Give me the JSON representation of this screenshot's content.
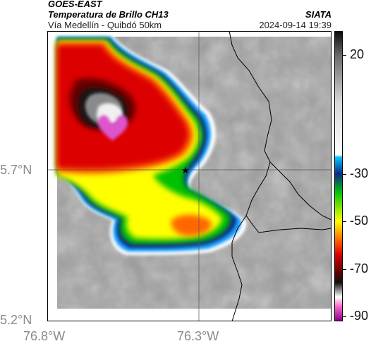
{
  "header": {
    "satellite": "GOES-EAST",
    "product": "Temperatura de Brillo CH13",
    "region": "Vía Medellín - Quibdó 50km",
    "agency": "SIATA",
    "datetime": "2024-09-14 19:39"
  },
  "axes": {
    "lat_labels": [
      "5.7°N",
      "5.2°N"
    ],
    "lon_labels": [
      "76.8°W",
      "76.3°W"
    ]
  },
  "colorbar": {
    "ticks": [
      "20",
      "-30",
      "-50",
      "-70",
      "-90"
    ],
    "stops": [
      {
        "value": 30,
        "color": "#0a0a0a"
      },
      {
        "value": 20,
        "color": "#6a6a6a"
      },
      {
        "value": 0,
        "color": "#d8d8d8"
      },
      {
        "value": -22,
        "color": "#ffffff"
      },
      {
        "value": -23,
        "color": "#00c8ff"
      },
      {
        "value": -30,
        "color": "#0a2a8a"
      },
      {
        "value": -38,
        "color": "#00c800"
      },
      {
        "value": -50,
        "color": "#ffff00"
      },
      {
        "value": -58,
        "color": "#ff6600"
      },
      {
        "value": -64,
        "color": "#dd0000"
      },
      {
        "value": -72,
        "color": "#5a0000"
      },
      {
        "value": -76,
        "color": "#111111"
      },
      {
        "value": -82,
        "color": "#ffffff"
      },
      {
        "value": -86,
        "color": "#ff66cc"
      },
      {
        "value": -92,
        "color": "#880088"
      }
    ]
  },
  "map": {
    "marker_icon": "star-icon"
  }
}
